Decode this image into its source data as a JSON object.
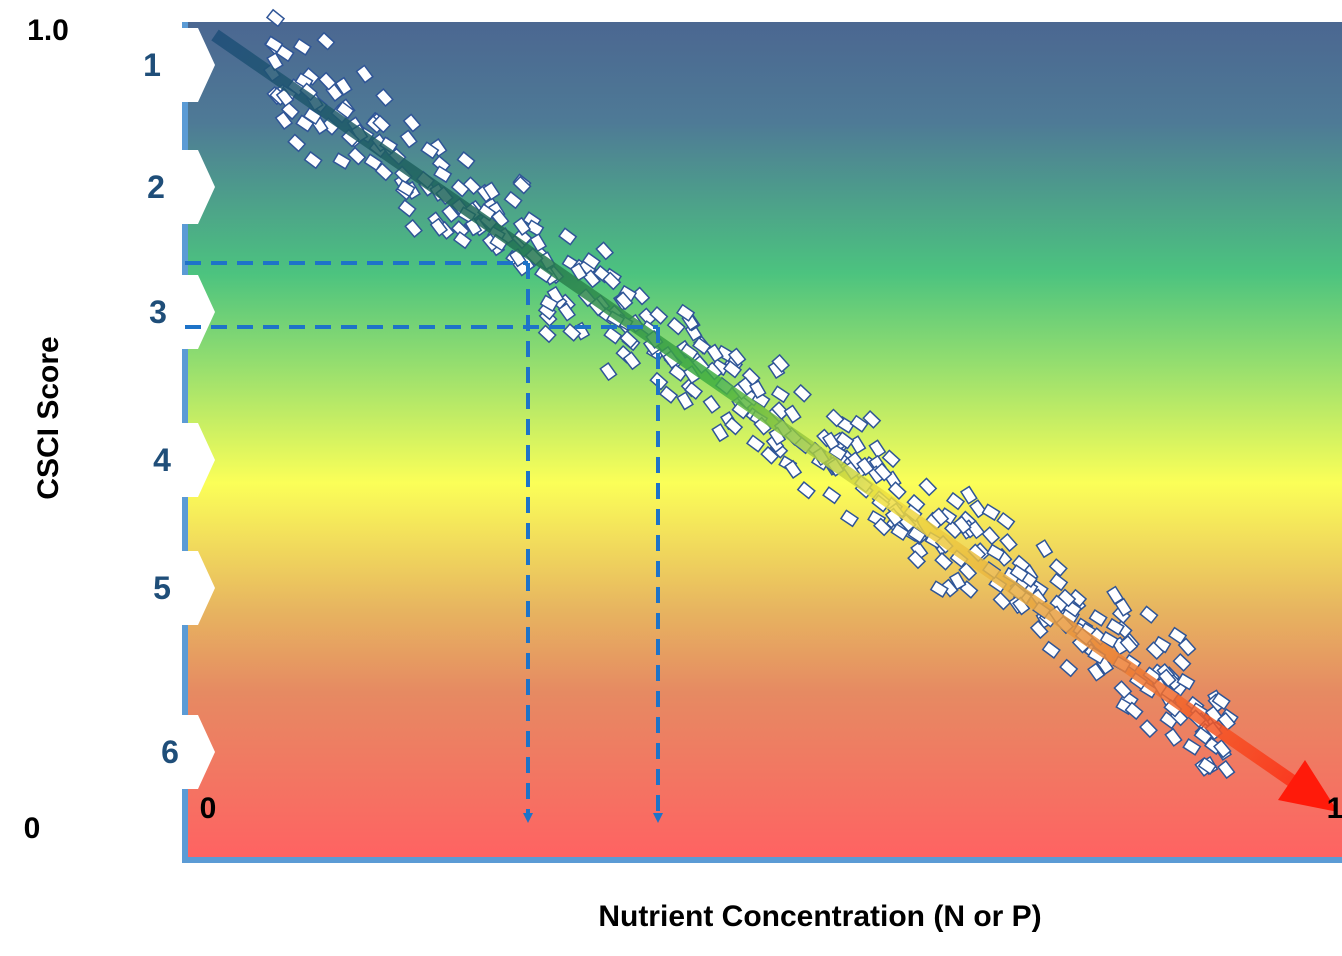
{
  "y_axis": {
    "title": "CSCI Score",
    "top": "1.0",
    "bottom": "0"
  },
  "x_axis": {
    "title": "Nutrient Concentration (N or P)",
    "start": "0",
    "end": "1"
  },
  "bands": [
    "1",
    "2",
    "3",
    "4",
    "5",
    "6"
  ]
}
